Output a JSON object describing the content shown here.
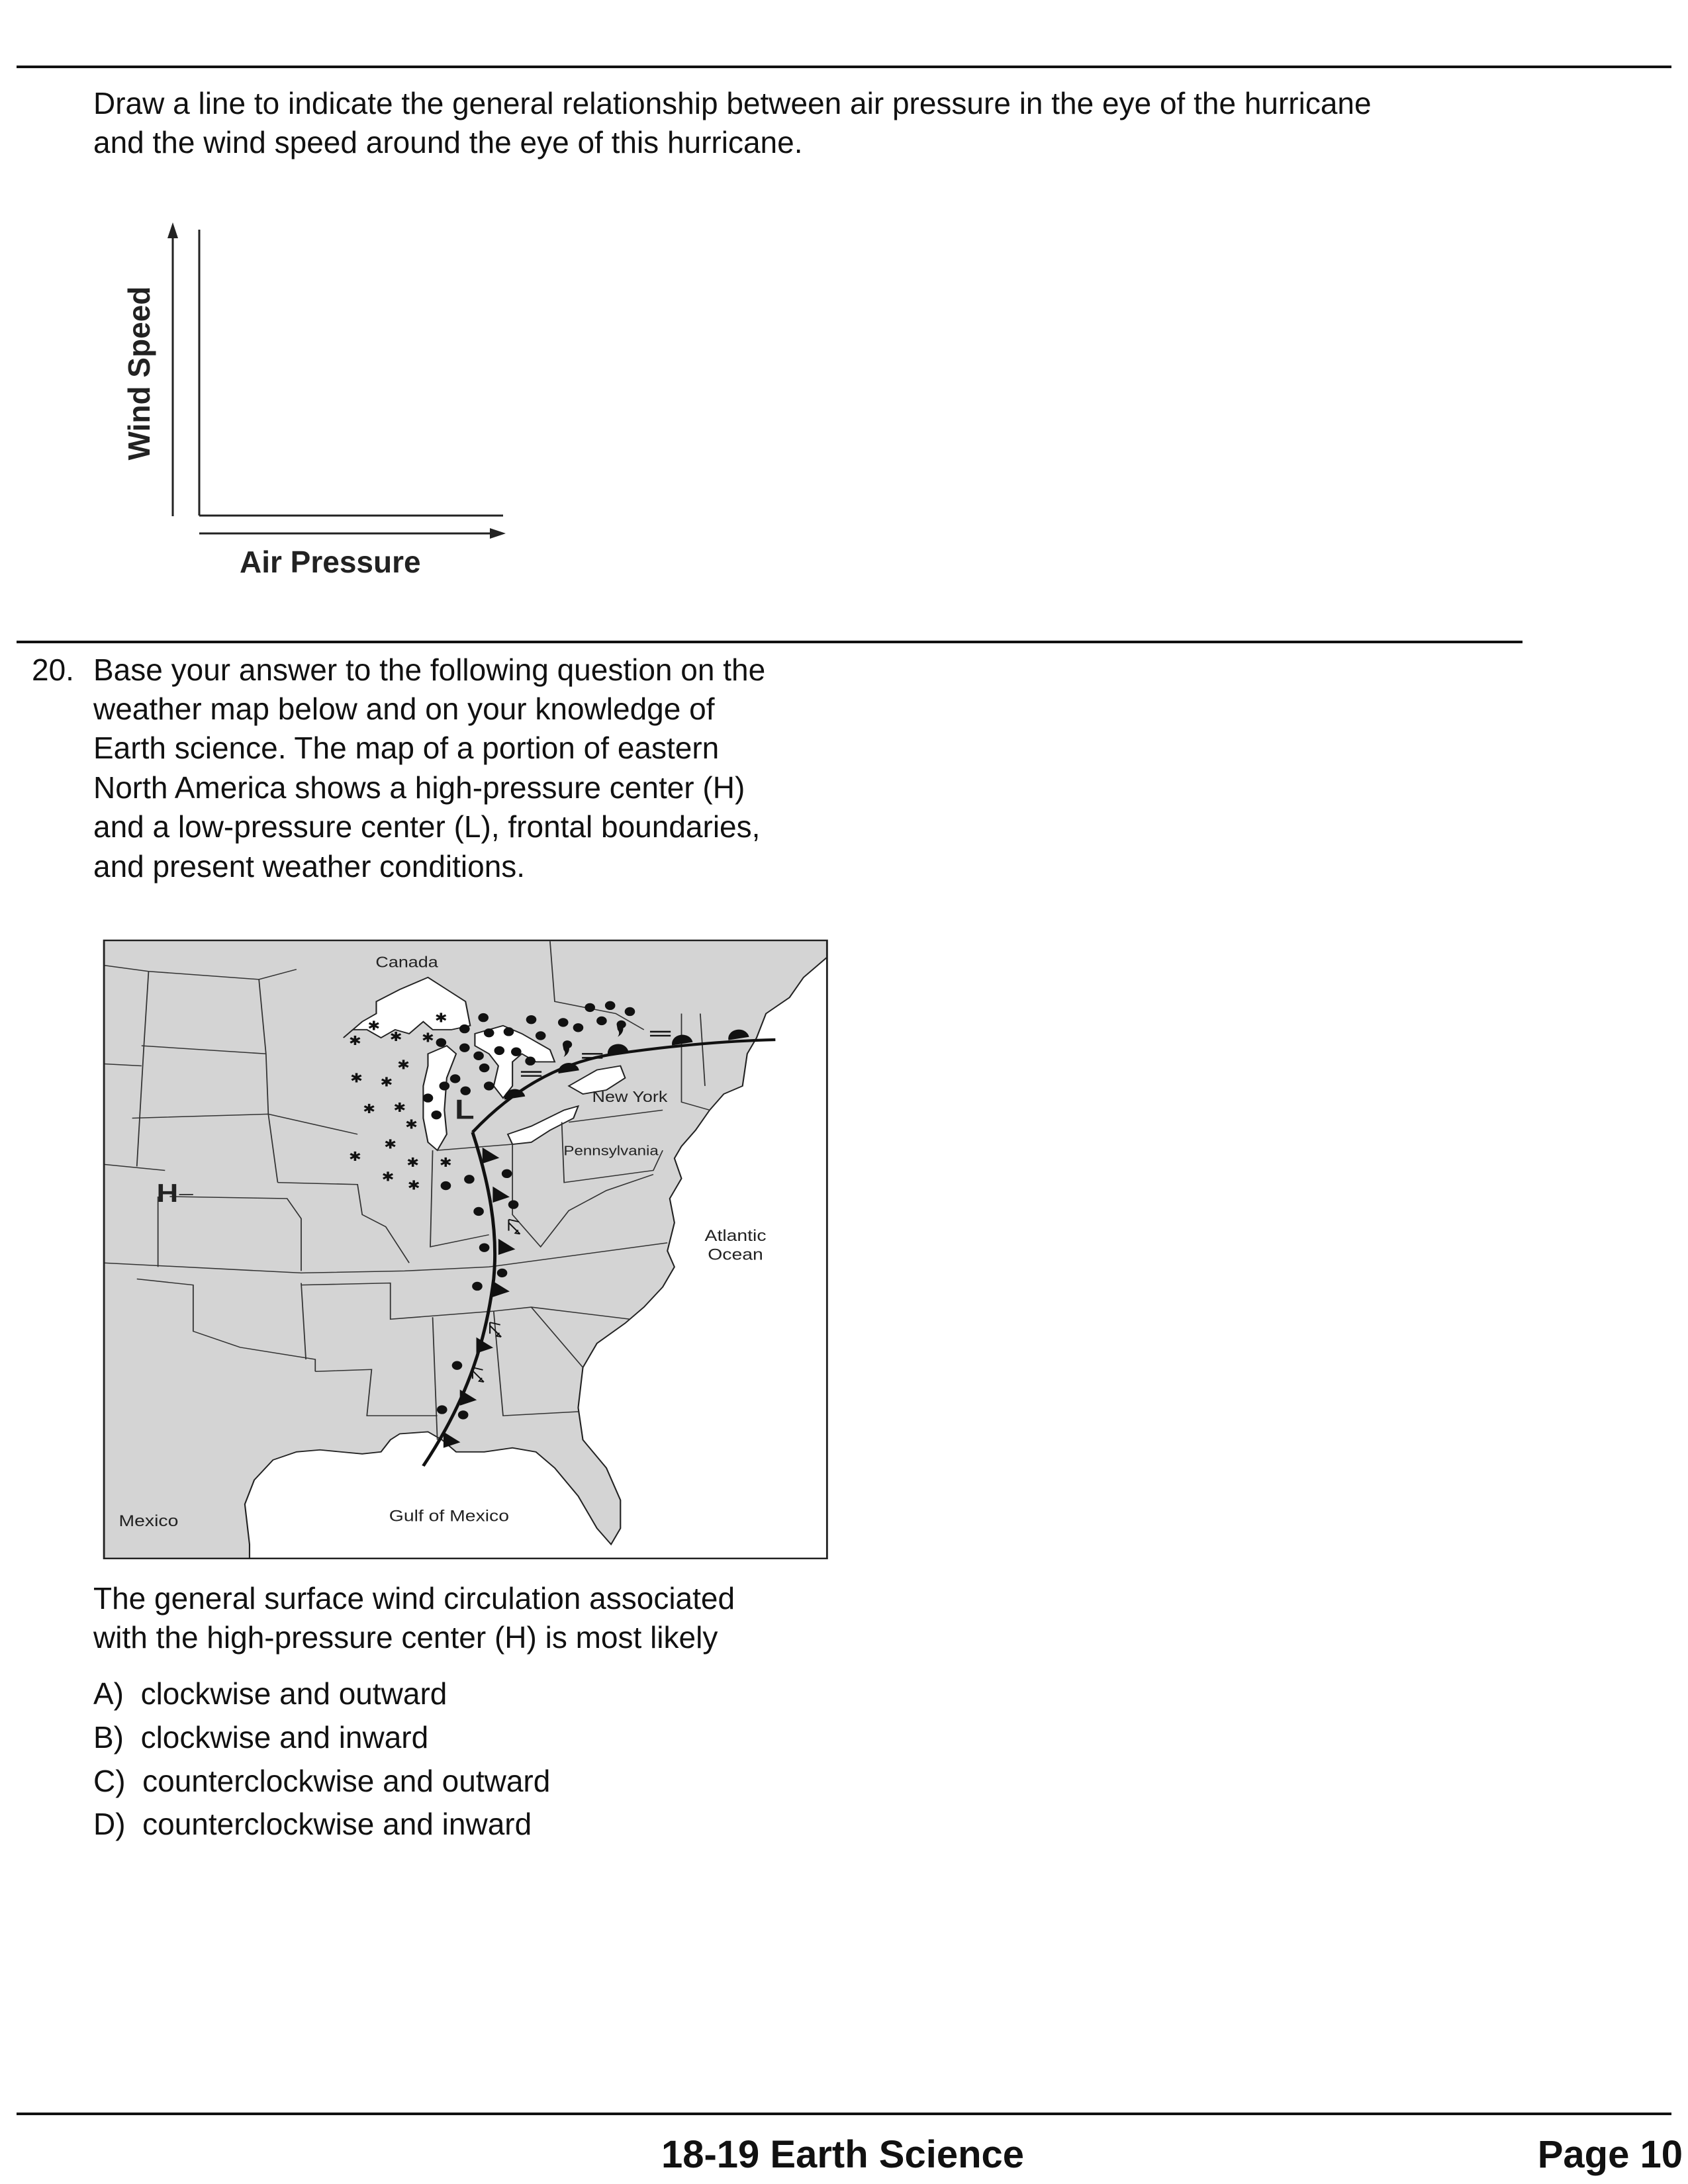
{
  "prior_question": {
    "prompt_lines": [
      "Draw a line to indicate the general relationship between air pressure in the eye of the hurricane",
      "and the wind speed around the eye of this hurricane."
    ],
    "graph": {
      "y_axis_label": "Wind Speed",
      "x_axis_label": "Air Pressure"
    }
  },
  "question": {
    "number": "20.",
    "stem_lines": [
      "Base your answer to the following question on the",
      "weather map below and on your knowledge of",
      "Earth science. The map of a portion of eastern",
      "North America shows a high-pressure center (H)",
      "and a low-pressure center (L), frontal boundaries,",
      "and present weather conditions."
    ],
    "map": {
      "labels": {
        "canada": "Canada",
        "new_york": "New York",
        "pennsylvania": "Pennsylvania",
        "atlantic_1": "Atlantic",
        "atlantic_2": "Ocean",
        "gulf": "Gulf of Mexico",
        "mexico": "Mexico",
        "high": "H",
        "low": "L"
      },
      "colors": {
        "land": "#d4d4d4",
        "water": "#ffffff",
        "border": "#222222"
      }
    },
    "prompt_lines": [
      "The general surface wind circulation associated",
      "with the high-pressure center (H) is most likely"
    ],
    "options": [
      {
        "letter": "A)",
        "text": "clockwise and outward"
      },
      {
        "letter": "B)",
        "text": "clockwise and inward"
      },
      {
        "letter": "C)",
        "text": "counterclockwise and outward"
      },
      {
        "letter": "D)",
        "text": "counterclockwise and inward"
      }
    ]
  },
  "footer": {
    "title": "18-19 Earth Science",
    "page": "Page 10"
  }
}
